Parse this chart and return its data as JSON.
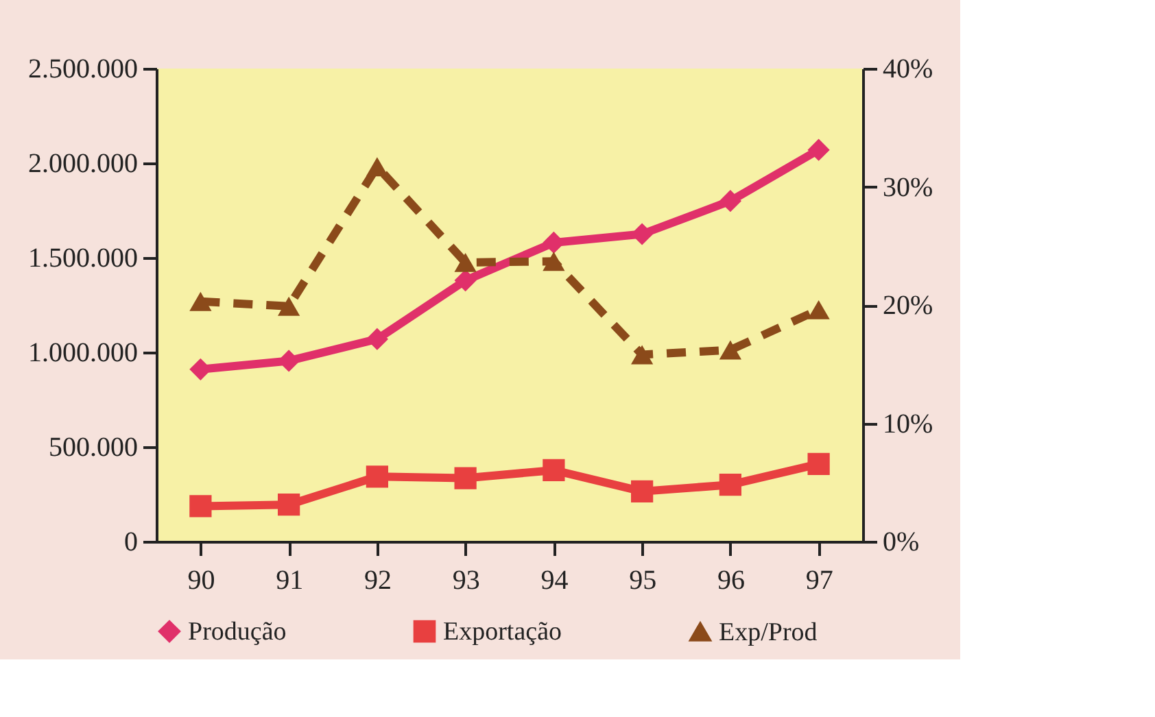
{
  "chart_data": {
    "type": "line",
    "categories": [
      "90",
      "91",
      "92",
      "93",
      "94",
      "95",
      "96",
      "97"
    ],
    "series": [
      {
        "name": "Produção",
        "color": "#e0306a",
        "marker": "diamond",
        "line_style": "solid",
        "values": [
          910000,
          955000,
          1070000,
          1380000,
          1580000,
          1625000,
          1800000,
          2070000
        ]
      },
      {
        "name": "Exportação",
        "color": "#e84040",
        "marker": "square",
        "line_style": "solid",
        "values": [
          187000,
          195000,
          343000,
          335000,
          377000,
          265000,
          300000,
          410000
        ]
      },
      {
        "name": "Exp/Prod",
        "color": "#8b4a1a",
        "marker": "triangle",
        "line_style": "dashed",
        "axis": "y2",
        "values": [
          20.3,
          19.9,
          31.7,
          23.6,
          23.7,
          15.8,
          16.2,
          19.6
        ]
      }
    ],
    "ylim": [
      0,
      2500000
    ],
    "yticks": [
      {
        "value": 0,
        "label": "0"
      },
      {
        "value": 500000,
        "label": "500.000"
      },
      {
        "value": 1000000,
        "label": "1.000.000"
      },
      {
        "value": 1500000,
        "label": "1.500.000"
      },
      {
        "value": 2000000,
        "label": "2.000.000"
      },
      {
        "value": 2500000,
        "label": "2.500.000"
      }
    ],
    "y2lim": [
      0,
      40
    ],
    "y2ticks": [
      {
        "value": 0,
        "label": "0%"
      },
      {
        "value": 10,
        "label": "10%"
      },
      {
        "value": 20,
        "label": "20%"
      },
      {
        "value": 30,
        "label": "30%"
      },
      {
        "value": 40,
        "label": "40%"
      }
    ],
    "grid": false,
    "legend": "bottom"
  }
}
